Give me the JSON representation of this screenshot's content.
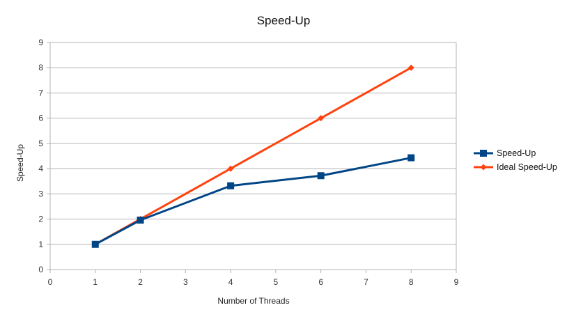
{
  "chart_data": {
    "type": "line",
    "title": "Speed-Up",
    "xlabel": "Number of Threads",
    "ylabel": "Speed-Up",
    "xlim": [
      0,
      9
    ],
    "ylim": [
      0,
      9
    ],
    "xticks": [
      0,
      1,
      2,
      3,
      4,
      5,
      6,
      7,
      8,
      9
    ],
    "yticks": [
      0,
      1,
      2,
      3,
      4,
      5,
      6,
      7,
      8,
      9
    ],
    "grid": "horizontal",
    "legend_position": "right",
    "series": [
      {
        "name": "Speed-Up",
        "color": "#004586",
        "marker": "square",
        "x": [
          1,
          2,
          4,
          6,
          8
        ],
        "y": [
          1.0,
          1.96,
          3.32,
          3.72,
          4.43
        ]
      },
      {
        "name": "Ideal Speed-Up",
        "color": "#ff420e",
        "marker": "diamond",
        "x": [
          1,
          2,
          4,
          6,
          8
        ],
        "y": [
          1,
          2,
          4,
          6,
          8
        ]
      }
    ]
  }
}
